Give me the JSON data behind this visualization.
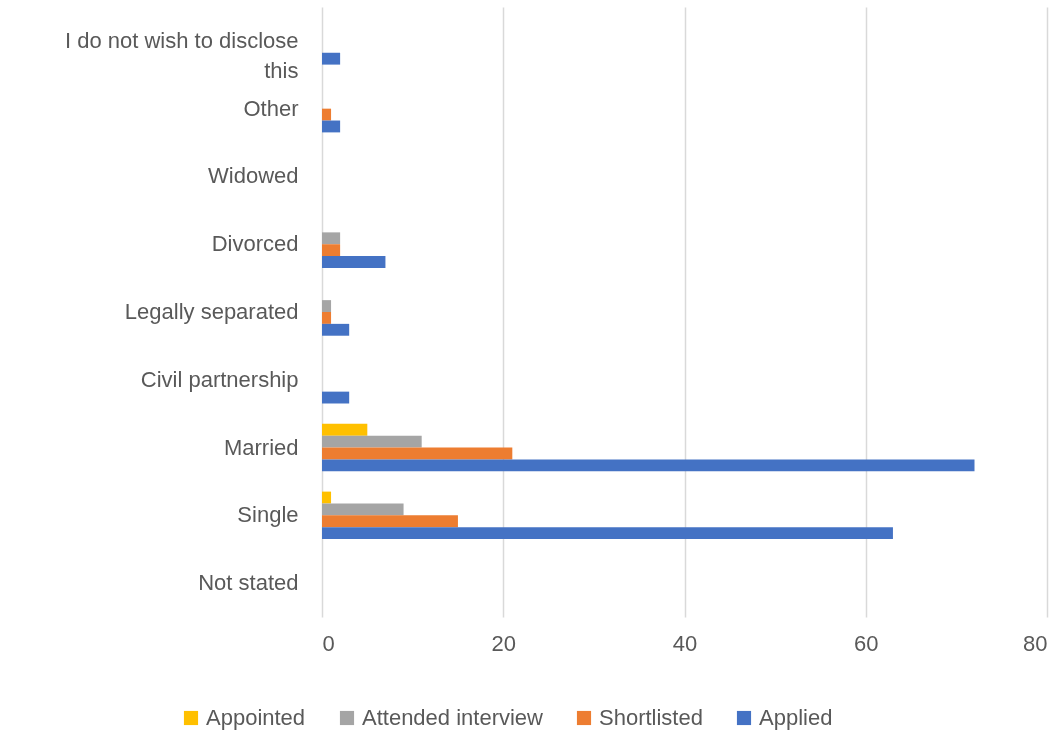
{
  "chart_data": {
    "type": "bar",
    "orientation": "horizontal",
    "categories": [
      "I do not wish to disclose this",
      "Other",
      "Widowed",
      "Divorced",
      "Legally separated",
      "Civil partnership",
      "Married",
      "Single",
      "Not stated"
    ],
    "series": [
      {
        "name": "Appointed",
        "color": "#ffc000",
        "values": [
          0,
          0,
          0,
          0,
          0,
          0,
          5,
          1,
          0
        ]
      },
      {
        "name": "Attended interview",
        "color": "#a5a5a5",
        "values": [
          0,
          0,
          0,
          2,
          1,
          0,
          11,
          9,
          0
        ]
      },
      {
        "name": "Shortlisted",
        "color": "#ed7d31",
        "values": [
          0,
          1,
          0,
          2,
          1,
          0,
          21,
          15,
          0
        ]
      },
      {
        "name": "Applied",
        "color": "#4472c4",
        "values": [
          2,
          2,
          0,
          7,
          3,
          3,
          72,
          63,
          0
        ]
      }
    ],
    "xlim": [
      0,
      80
    ],
    "xticks": [
      0,
      20,
      40,
      60,
      80
    ],
    "grid": "x",
    "legend": "bottom"
  }
}
